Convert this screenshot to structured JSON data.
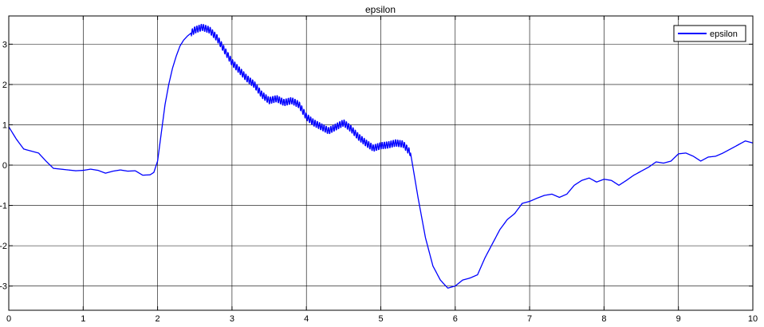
{
  "chart_data": {
    "type": "line",
    "title": "epsilon",
    "xlabel": "",
    "ylabel": "",
    "xlim": [
      0,
      10
    ],
    "ylim": [
      -3.6,
      3.7
    ],
    "xticks": [
      0,
      1,
      2,
      3,
      4,
      5,
      6,
      7,
      8,
      9,
      10
    ],
    "xtick_labels": [
      "0",
      "1",
      "2",
      "3",
      "4",
      "5",
      "6",
      "7",
      "8",
      "9",
      "10"
    ],
    "yticks": [
      3,
      2,
      1,
      0,
      -1,
      -2,
      -3
    ],
    "ytick_labels": [
      "3",
      "2",
      "1",
      "0",
      "-1",
      "-2",
      "-3"
    ],
    "grid": true,
    "legend": {
      "position": "top-right",
      "entries": [
        "epsilon"
      ]
    },
    "series": [
      {
        "name": "epsilon",
        "color": "#0000ff",
        "oscillation": {
          "x_range": [
            2.45,
            5.4
          ],
          "amplitude": 0.09,
          "period": 0.03
        },
        "x": [
          0,
          0.1,
          0.2,
          0.3,
          0.4,
          0.5,
          0.6,
          0.7,
          0.8,
          0.9,
          1.0,
          1.1,
          1.2,
          1.3,
          1.4,
          1.5,
          1.6,
          1.7,
          1.8,
          1.9,
          1.95,
          2.0,
          2.05,
          2.1,
          2.15,
          2.2,
          2.25,
          2.3,
          2.35,
          2.4,
          2.5,
          2.6,
          2.7,
          2.8,
          2.9,
          3.0,
          3.1,
          3.2,
          3.3,
          3.4,
          3.5,
          3.6,
          3.7,
          3.8,
          3.9,
          4.0,
          4.1,
          4.2,
          4.3,
          4.4,
          4.5,
          4.6,
          4.7,
          4.8,
          4.9,
          5.0,
          5.1,
          5.2,
          5.3,
          5.4,
          5.5,
          5.6,
          5.7,
          5.8,
          5.9,
          6.0,
          6.1,
          6.2,
          6.3,
          6.4,
          6.5,
          6.6,
          6.7,
          6.8,
          6.9,
          7.0,
          7.1,
          7.2,
          7.3,
          7.4,
          7.5,
          7.6,
          7.7,
          7.8,
          7.9,
          8.0,
          8.1,
          8.2,
          8.3,
          8.4,
          8.5,
          8.6,
          8.7,
          8.8,
          8.9,
          9.0,
          9.1,
          9.2,
          9.3,
          9.4,
          9.5,
          9.6,
          9.7,
          9.8,
          9.9,
          10.0
        ],
        "values": [
          0.95,
          0.65,
          0.4,
          0.35,
          0.3,
          0.1,
          -0.08,
          -0.1,
          -0.12,
          -0.14,
          -0.13,
          -0.1,
          -0.13,
          -0.2,
          -0.15,
          -0.12,
          -0.15,
          -0.14,
          -0.25,
          -0.24,
          -0.18,
          0.1,
          0.8,
          1.5,
          2.0,
          2.4,
          2.7,
          2.95,
          3.1,
          3.2,
          3.35,
          3.42,
          3.35,
          3.15,
          2.85,
          2.55,
          2.35,
          2.15,
          2.0,
          1.75,
          1.6,
          1.65,
          1.55,
          1.6,
          1.5,
          1.2,
          1.05,
          0.95,
          0.85,
          0.95,
          1.05,
          0.9,
          0.7,
          0.55,
          0.42,
          0.48,
          0.5,
          0.55,
          0.52,
          0.3,
          -0.8,
          -1.8,
          -2.5,
          -2.85,
          -3.05,
          -3.0,
          -2.85,
          -2.8,
          -2.72,
          -2.3,
          -1.95,
          -1.6,
          -1.35,
          -1.2,
          -0.95,
          -0.9,
          -0.82,
          -0.75,
          -0.72,
          -0.8,
          -0.72,
          -0.5,
          -0.38,
          -0.32,
          -0.42,
          -0.35,
          -0.38,
          -0.5,
          -0.38,
          -0.25,
          -0.15,
          -0.05,
          0.08,
          0.05,
          0.1,
          0.28,
          0.3,
          0.22,
          0.1,
          0.2,
          0.22,
          0.3,
          0.4,
          0.5,
          0.6,
          0.55
        ]
      }
    ]
  }
}
